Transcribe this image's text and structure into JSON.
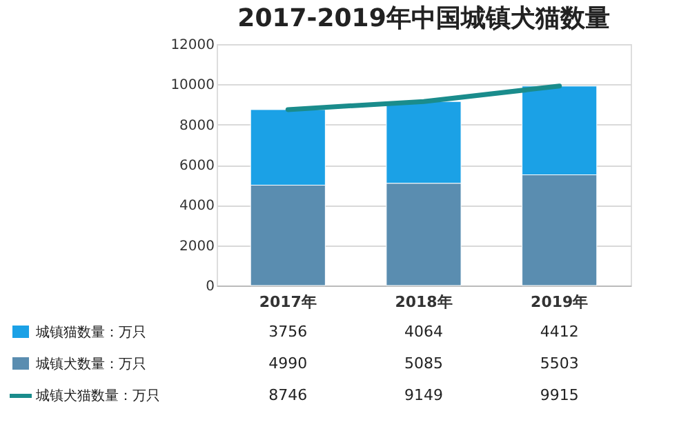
{
  "chart_data": {
    "type": "bar",
    "title": "2017-2019年中国城镇犬猫数量",
    "categories": [
      "2017年",
      "2018年",
      "2019年"
    ],
    "stacked": true,
    "series": [
      {
        "name": "城镇犬数量：万只",
        "color": "#5a8db0",
        "values": [
          4990,
          5085,
          5503
        ]
      },
      {
        "name": "城镇猫数量：万只",
        "color": "#1ba1e6",
        "values": [
          3756,
          4064,
          4412
        ]
      },
      {
        "name": "城镇犬猫数量：万只",
        "type": "line",
        "color": "#1a8c8c",
        "values": [
          8746,
          9149,
          9915
        ]
      }
    ],
    "ylim": [
      0,
      12000
    ],
    "yticks": [
      0,
      2000,
      4000,
      6000,
      8000,
      10000,
      12000
    ],
    "grid": "y",
    "legend": "bottom",
    "data_labels": true
  }
}
